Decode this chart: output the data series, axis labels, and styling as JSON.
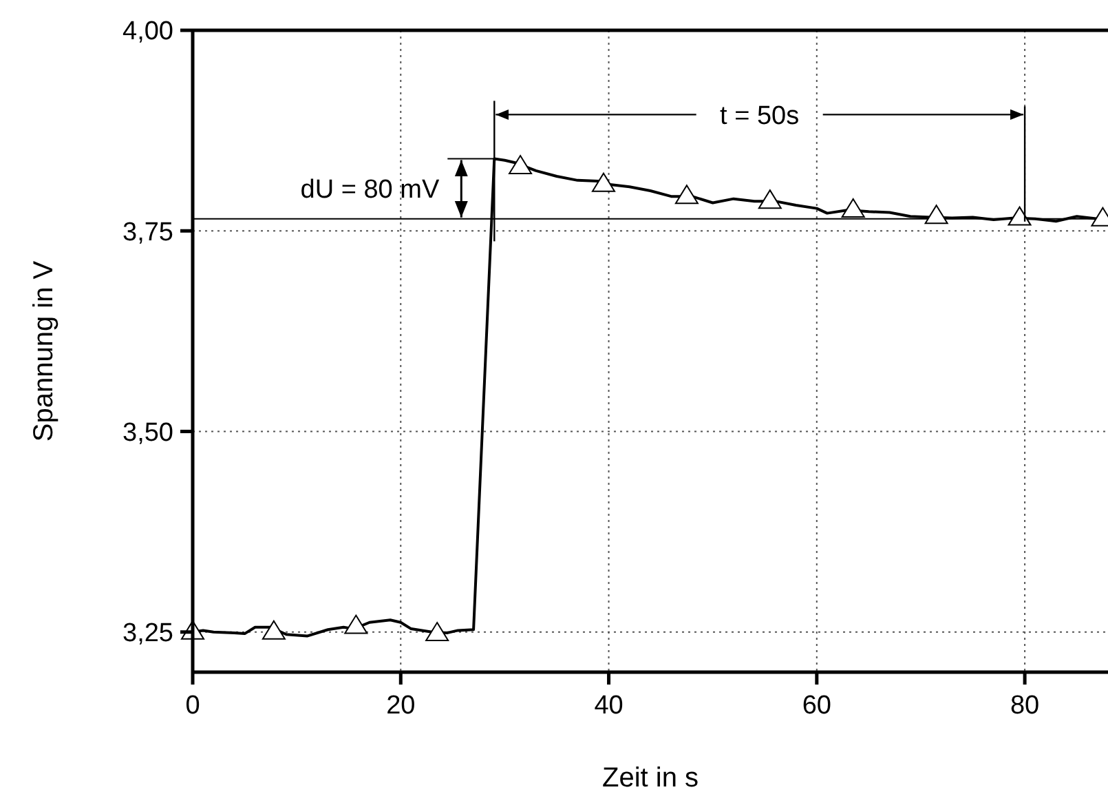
{
  "chart_data": {
    "type": "line",
    "xlabel": "Zeit in s",
    "ylabel": "Spannung in V",
    "xlim": [
      0,
      88
    ],
    "ylim": [
      3.2,
      4.0
    ],
    "xticks": [
      0,
      20,
      40,
      60,
      80
    ],
    "yticks": [
      {
        "value": 3.25,
        "label": "3,25"
      },
      {
        "value": 3.5,
        "label": "3,50"
      },
      {
        "value": 3.75,
        "label": "3,75"
      },
      {
        "value": 4.0,
        "label": "4,00"
      }
    ],
    "grid": true,
    "line_style": "solid",
    "series": [
      {
        "color": "#000000",
        "marker": "none",
        "x": [
          0,
          1,
          2,
          4,
          5,
          6,
          7.5,
          9,
          11,
          13,
          14.5,
          15.5,
          17,
          19,
          20,
          21,
          23,
          24.5,
          25.5,
          27,
          29,
          30,
          31,
          33,
          35,
          37,
          39,
          40,
          42,
          44,
          46,
          48,
          50,
          52,
          54,
          56,
          58,
          60,
          61,
          63,
          65,
          67,
          69,
          71,
          73,
          75,
          77,
          79,
          81,
          83,
          85,
          87,
          88
        ],
        "values": [
          3.25,
          3.252,
          3.25,
          3.249,
          3.248,
          3.256,
          3.256,
          3.247,
          3.245,
          3.253,
          3.256,
          3.254,
          3.262,
          3.265,
          3.262,
          3.254,
          3.25,
          3.249,
          3.252,
          3.253,
          3.84,
          3.838,
          3.835,
          3.825,
          3.818,
          3.813,
          3.812,
          3.808,
          3.805,
          3.8,
          3.793,
          3.793,
          3.785,
          3.79,
          3.787,
          3.787,
          3.782,
          3.778,
          3.772,
          3.776,
          3.774,
          3.773,
          3.768,
          3.767,
          3.766,
          3.767,
          3.764,
          3.766,
          3.765,
          3.762,
          3.768,
          3.765,
          3.766
        ]
      },
      {
        "type": "scatter",
        "color": "#000000",
        "marker": "triangle",
        "x": [
          0,
          7.8,
          15.7,
          23.5,
          31.5,
          39.5,
          47.5,
          55.5,
          63.5,
          71.5,
          79.5,
          87.5
        ],
        "values": [
          3.25,
          3.25,
          3.257,
          3.248,
          3.83,
          3.808,
          3.793,
          3.787,
          3.776,
          3.768,
          3.766,
          3.765
        ]
      }
    ],
    "ref_lines": [
      {
        "axis": "y",
        "value": 3.765,
        "color": "#000000",
        "line_style": "solid"
      }
    ],
    "annotations": [
      {
        "text": "dU = 80 mV",
        "x": 29,
        "y": 3.84
      },
      "t = 50s"
    ]
  }
}
